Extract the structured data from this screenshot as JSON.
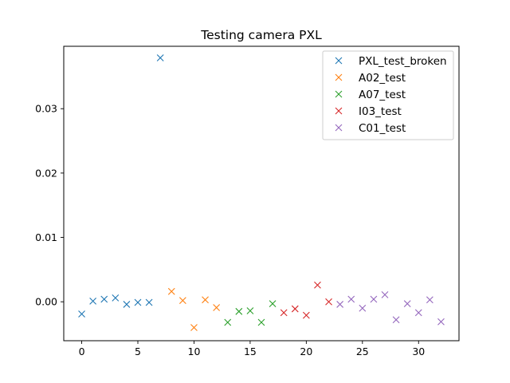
{
  "chart_data": {
    "type": "scatter",
    "title": "Testing camera PXL",
    "xlabel": "",
    "ylabel": "",
    "xlim": [
      -1.6,
      33.6
    ],
    "ylim": [
      -0.00605,
      0.0397
    ],
    "xticks": [
      0,
      5,
      10,
      15,
      20,
      25,
      30
    ],
    "yticks": [
      0.0,
      0.01,
      0.02,
      0.03
    ],
    "ytick_labels": [
      "0.00",
      "0.01",
      "0.02",
      "0.03"
    ],
    "grid": false,
    "legend_position": "top-right",
    "marker": "x",
    "series": [
      {
        "name": "PXL_test_broken",
        "color": "#1f77b4",
        "points": [
          [
            0,
            -0.0019
          ],
          [
            1,
            0.0001
          ],
          [
            2,
            0.0004
          ],
          [
            3,
            0.0006
          ],
          [
            4,
            -0.0004
          ],
          [
            5,
            -0.0001
          ],
          [
            6,
            -0.0001
          ],
          [
            7,
            0.0379
          ]
        ]
      },
      {
        "name": "A02_test",
        "color": "#ff7f0e",
        "points": [
          [
            8,
            0.0016
          ],
          [
            9,
            0.0002
          ],
          [
            10,
            -0.004
          ],
          [
            11,
            0.0003
          ],
          [
            12,
            -0.0009
          ]
        ]
      },
      {
        "name": "A07_test",
        "color": "#2ca02c",
        "points": [
          [
            13,
            -0.0032
          ],
          [
            14,
            -0.0015
          ],
          [
            15,
            -0.0014
          ],
          [
            16,
            -0.0032
          ],
          [
            17,
            -0.0003
          ]
        ]
      },
      {
        "name": "I03_test",
        "color": "#d62728",
        "points": [
          [
            18,
            -0.0017
          ],
          [
            19,
            -0.0011
          ],
          [
            20,
            -0.0021
          ],
          [
            21,
            0.0026
          ],
          [
            22,
            0.0
          ]
        ]
      },
      {
        "name": "C01_test",
        "color": "#9467bd",
        "points": [
          [
            23,
            -0.0004
          ],
          [
            24,
            0.0004
          ],
          [
            25,
            -0.001
          ],
          [
            26,
            0.0004
          ],
          [
            27,
            0.0011
          ],
          [
            28,
            -0.0028
          ],
          [
            29,
            -0.0003
          ],
          [
            30,
            -0.0017
          ],
          [
            31,
            0.0003
          ],
          [
            32,
            -0.0031
          ]
        ]
      }
    ]
  }
}
